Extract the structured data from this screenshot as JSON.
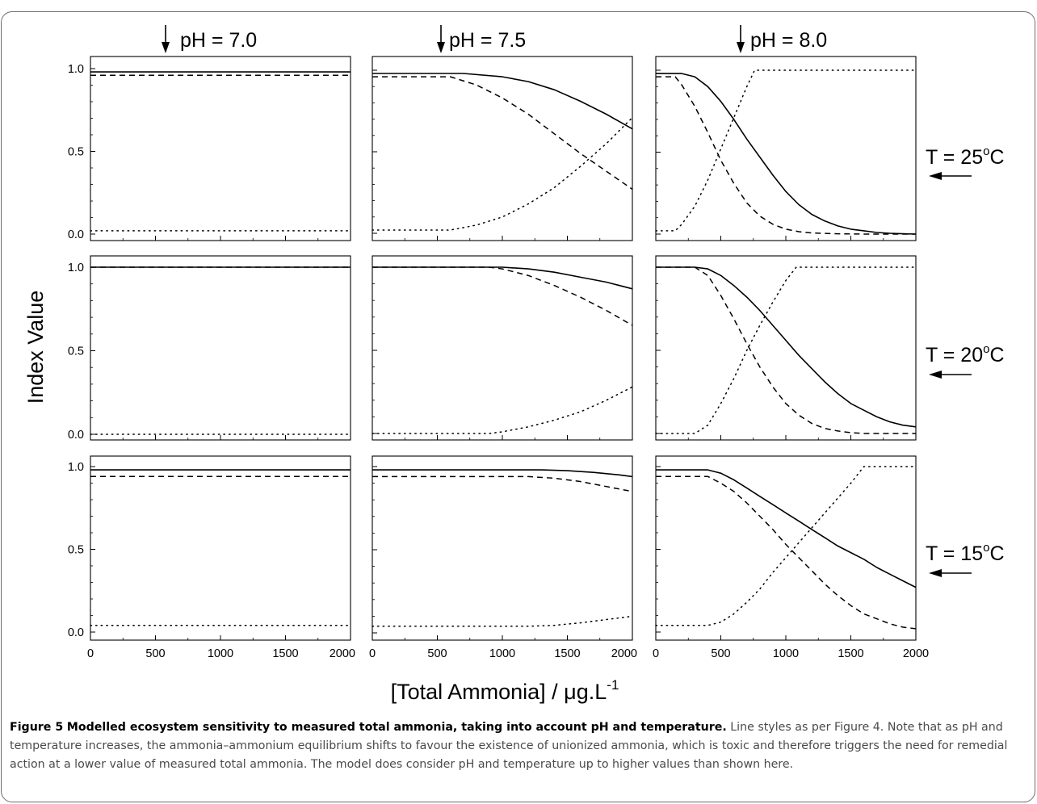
{
  "figure": {
    "label": "Figure 5",
    "title": "Modelled ecosystem sensitivity to measured total ammonia, taking into account pH and temperature.",
    "body": "Line styles as per Figure 4. Note that as pH and temperature increases, the ammonia–ammonium equilibrium shifts to favour the existence of unionized ammonia, which is toxic and therefore triggers the need for remedial action at a lower value of measured total ammonia. The model does consider pH and temperature up to higher values than shown here."
  },
  "ylabel": "Index Value",
  "xlabel": {
    "text": "[Total Ammonia] / μg.L",
    "sup": "-1"
  },
  "column_labels": [
    "pH = 7.0",
    "pH = 7.5",
    "pH = 8.0"
  ],
  "row_labels": [
    {
      "text": "T = 25",
      "unit": "C"
    },
    {
      "text": "T = 20",
      "unit": "C"
    },
    {
      "text": "T = 15",
      "unit": "C"
    }
  ],
  "arrow_glyphs": {
    "down": "↓",
    "left": "←"
  },
  "colors": {
    "line": "#000000",
    "axis": "#000000"
  },
  "chart_data": {
    "type": "line",
    "layout": "3x3 small multiples (rows = temperature, columns = pH)",
    "xlim": [
      0,
      2000
    ],
    "ylim": [
      0,
      1
    ],
    "xticks": [
      0,
      500,
      1000,
      1500,
      2000
    ],
    "yticks": [
      0.0,
      0.5,
      1.0
    ],
    "ytick_labels": [
      "0.0",
      "0.5",
      "1.0"
    ],
    "x_down_arrows": [
      {
        "column": "pH = 7.0",
        "x": 600
      },
      {
        "column": "pH = 7.5",
        "x": 550
      },
      {
        "column": "pH = 8.0",
        "x": 650
      }
    ],
    "series_styles": [
      "solid",
      "dashed",
      "dotted"
    ],
    "panels": [
      {
        "row": "T = 25°C",
        "col": "pH = 7.0",
        "series": [
          {
            "style": "solid",
            "x": [
              0,
              2000
            ],
            "y": [
              0.98,
              0.98
            ]
          },
          {
            "style": "dashed",
            "x": [
              0,
              2000
            ],
            "y": [
              0.96,
              0.96
            ]
          },
          {
            "style": "dotted",
            "x": [
              0,
              2000
            ],
            "y": [
              0.02,
              0.02
            ]
          }
        ]
      },
      {
        "row": "T = 25°C",
        "col": "pH = 7.5",
        "series": [
          {
            "style": "solid",
            "x": [
              0,
              700,
              1000,
              1200,
              1400,
              1600,
              1800,
              2000
            ],
            "y": [
              0.98,
              0.98,
              0.96,
              0.93,
              0.88,
              0.81,
              0.73,
              0.64
            ]
          },
          {
            "style": "dashed",
            "x": [
              0,
              600,
              800,
              1000,
              1200,
              1400,
              1600,
              1800,
              2000
            ],
            "y": [
              0.96,
              0.96,
              0.91,
              0.83,
              0.73,
              0.61,
              0.49,
              0.38,
              0.27
            ]
          },
          {
            "style": "dotted",
            "x": [
              0,
              600,
              800,
              1000,
              1200,
              1400,
              1600,
              1800,
              2000
            ],
            "y": [
              0.02,
              0.02,
              0.05,
              0.1,
              0.18,
              0.28,
              0.41,
              0.55,
              0.71
            ]
          }
        ]
      },
      {
        "row": "T = 25°C",
        "col": "pH = 8.0",
        "series": [
          {
            "style": "solid",
            "x": [
              0,
              200,
              300,
              400,
              500,
              600,
              700,
              800,
              900,
              1000,
              1100,
              1200,
              1300,
              1400,
              1500,
              1600,
              1700,
              1800,
              1900,
              2000
            ],
            "y": [
              0.98,
              0.98,
              0.96,
              0.9,
              0.81,
              0.7,
              0.58,
              0.47,
              0.36,
              0.26,
              0.18,
              0.12,
              0.08,
              0.05,
              0.03,
              0.02,
              0.01,
              0.005,
              0.002,
              0.0
            ]
          },
          {
            "style": "dashed",
            "x": [
              0,
              150,
              200,
              300,
              400,
              500,
              600,
              700,
              800,
              900,
              1000,
              1100,
              1200,
              1400,
              1600,
              2000
            ],
            "y": [
              0.96,
              0.96,
              0.91,
              0.78,
              0.62,
              0.45,
              0.31,
              0.19,
              0.11,
              0.06,
              0.03,
              0.015,
              0.007,
              0.002,
              0.0,
              0.0
            ]
          },
          {
            "style": "dotted",
            "x": [
              0,
              150,
              200,
              300,
              400,
              500,
              600,
              700,
              760,
              800,
              2000
            ],
            "y": [
              0.02,
              0.02,
              0.06,
              0.17,
              0.33,
              0.52,
              0.71,
              0.9,
              1.0,
              1.0,
              1.0
            ]
          }
        ]
      },
      {
        "row": "T = 20°C",
        "col": "pH = 7.0",
        "series": [
          {
            "style": "solid",
            "x": [
              0,
              2000
            ],
            "y": [
              1.0,
              1.0
            ]
          },
          {
            "style": "dashed",
            "x": [
              0,
              2000
            ],
            "y": [
              1.0,
              1.0
            ]
          },
          {
            "style": "dotted",
            "x": [
              0,
              2000
            ],
            "y": [
              0.0,
              0.0
            ]
          }
        ]
      },
      {
        "row": "T = 20°C",
        "col": "pH = 7.5",
        "series": [
          {
            "style": "solid",
            "x": [
              0,
              1000,
              1200,
              1400,
              1600,
              1800,
              2000
            ],
            "y": [
              1.0,
              1.0,
              0.99,
              0.97,
              0.94,
              0.91,
              0.87
            ]
          },
          {
            "style": "dashed",
            "x": [
              0,
              900,
              1000,
              1200,
              1400,
              1600,
              1800,
              2000
            ],
            "y": [
              1.0,
              1.0,
              0.99,
              0.95,
              0.89,
              0.82,
              0.74,
              0.65
            ]
          },
          {
            "style": "dotted",
            "x": [
              0,
              900,
              1000,
              1200,
              1400,
              1600,
              1800,
              2000
            ],
            "y": [
              0.0,
              0.0,
              0.01,
              0.04,
              0.08,
              0.13,
              0.2,
              0.28
            ]
          }
        ]
      },
      {
        "row": "T = 20°C",
        "col": "pH = 8.0",
        "series": [
          {
            "style": "solid",
            "x": [
              0,
              300,
              400,
              500,
              600,
              700,
              800,
              900,
              1000,
              1100,
              1200,
              1300,
              1400,
              1500,
              1600,
              1700,
              1800,
              1900,
              2000
            ],
            "y": [
              1.0,
              1.0,
              0.99,
              0.95,
              0.89,
              0.82,
              0.74,
              0.65,
              0.56,
              0.47,
              0.39,
              0.31,
              0.24,
              0.18,
              0.14,
              0.1,
              0.07,
              0.05,
              0.04
            ]
          },
          {
            "style": "dashed",
            "x": [
              0,
              300,
              400,
              500,
              600,
              700,
              800,
              900,
              1000,
              1100,
              1200,
              1300,
              1400,
              1500,
              1600,
              2000
            ],
            "y": [
              1.0,
              1.0,
              0.95,
              0.83,
              0.69,
              0.54,
              0.4,
              0.28,
              0.18,
              0.11,
              0.06,
              0.03,
              0.015,
              0.005,
              0.0,
              0.0
            ]
          },
          {
            "style": "dotted",
            "x": [
              0,
              300,
              400,
              500,
              600,
              700,
              800,
              900,
              1000,
              1080,
              1150,
              2000
            ],
            "y": [
              0.0,
              0.0,
              0.05,
              0.18,
              0.33,
              0.5,
              0.65,
              0.79,
              0.92,
              1.0,
              1.0,
              1.0
            ]
          }
        ]
      },
      {
        "row": "T = 15°C",
        "col": "pH = 7.0",
        "series": [
          {
            "style": "solid",
            "x": [
              0,
              2000
            ],
            "y": [
              0.98,
              0.98
            ]
          },
          {
            "style": "dashed",
            "x": [
              0,
              2000
            ],
            "y": [
              0.94,
              0.94
            ]
          },
          {
            "style": "dotted",
            "x": [
              0,
              2000
            ],
            "y": [
              0.04,
              0.04
            ]
          }
        ]
      },
      {
        "row": "T = 15°C",
        "col": "pH = 7.5",
        "series": [
          {
            "style": "solid",
            "x": [
              0,
              1300,
              1500,
              1700,
              1900,
              2000
            ],
            "y": [
              0.98,
              0.98,
              0.975,
              0.965,
              0.95,
              0.94
            ]
          },
          {
            "style": "dashed",
            "x": [
              0,
              1200,
              1400,
              1600,
              1800,
              2000
            ],
            "y": [
              0.94,
              0.94,
              0.93,
              0.91,
              0.88,
              0.85
            ]
          },
          {
            "style": "dotted",
            "x": [
              0,
              1200,
              1400,
              1600,
              1800,
              2000
            ],
            "y": [
              0.04,
              0.04,
              0.045,
              0.06,
              0.08,
              0.1
            ]
          }
        ]
      },
      {
        "row": "T = 15°C",
        "col": "pH = 8.0",
        "series": [
          {
            "style": "solid",
            "x": [
              0,
              400,
              500,
              600,
              700,
              800,
              900,
              1000,
              1100,
              1200,
              1300,
              1400,
              1500,
              1600,
              1700,
              1800,
              1900,
              2000
            ],
            "y": [
              0.98,
              0.98,
              0.96,
              0.92,
              0.87,
              0.82,
              0.77,
              0.72,
              0.67,
              0.62,
              0.57,
              0.52,
              0.48,
              0.44,
              0.39,
              0.35,
              0.31,
              0.27
            ]
          },
          {
            "style": "dashed",
            "x": [
              0,
              400,
              500,
              600,
              700,
              800,
              900,
              1000,
              1100,
              1200,
              1300,
              1400,
              1500,
              1600,
              1700,
              1800,
              1900,
              2000
            ],
            "y": [
              0.94,
              0.94,
              0.9,
              0.85,
              0.78,
              0.7,
              0.62,
              0.53,
              0.45,
              0.37,
              0.29,
              0.22,
              0.16,
              0.11,
              0.08,
              0.05,
              0.03,
              0.02
            ]
          },
          {
            "style": "dotted",
            "x": [
              0,
              400,
              500,
              600,
              700,
              800,
              900,
              1000,
              1100,
              1200,
              1300,
              1400,
              1500,
              1600,
              2000
            ],
            "y": [
              0.04,
              0.04,
              0.06,
              0.11,
              0.18,
              0.26,
              0.36,
              0.45,
              0.54,
              0.63,
              0.72,
              0.81,
              0.9,
              1.0,
              1.0
            ]
          }
        ]
      }
    ]
  }
}
